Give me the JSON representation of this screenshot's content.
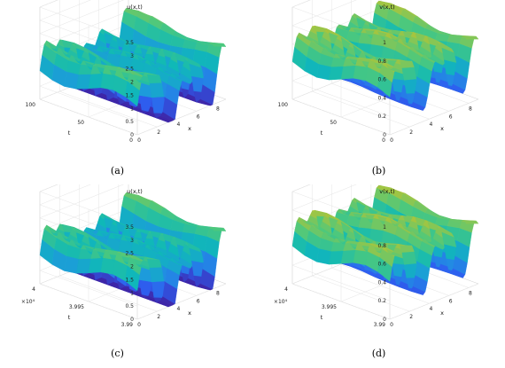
{
  "chart_data": [
    {
      "type": "surface3d",
      "title": "u(x,t)",
      "xlabel": "x",
      "ylabel": "t",
      "xlim": [
        0,
        9
      ],
      "ylim": [
        0,
        100
      ],
      "zlim": [
        0,
        3.5
      ],
      "x_ticks": [
        "0",
        "2",
        "4",
        "6",
        "8"
      ],
      "y_ticks": [
        "0",
        "50",
        "100"
      ],
      "y_exponent": "",
      "z_ticks": [
        "0",
        "0.5",
        "1",
        "1.5",
        "2",
        "2.5",
        "3",
        "3.5"
      ],
      "caption": "(a)"
    },
    {
      "type": "surface3d",
      "title": "v(x,t)",
      "xlabel": "x",
      "ylabel": "t",
      "xlim": [
        0,
        9
      ],
      "ylim": [
        0,
        100
      ],
      "zlim": [
        0,
        1
      ],
      "x_ticks": [
        "0",
        "2",
        "4",
        "6",
        "8"
      ],
      "y_ticks": [
        "0",
        "50",
        "100"
      ],
      "y_exponent": "",
      "z_ticks": [
        "0",
        "0.2",
        "0.4",
        "0.6",
        "0.8",
        "1"
      ],
      "caption": "(b)"
    },
    {
      "type": "surface3d",
      "title": "u(x,t)",
      "xlabel": "x",
      "ylabel": "t",
      "xlim": [
        0,
        9
      ],
      "ylim": [
        3.99,
        4
      ],
      "zlim": [
        0,
        3.5
      ],
      "x_ticks": [
        "0",
        "2",
        "4",
        "6",
        "8"
      ],
      "y_ticks": [
        "3.99",
        "3.995",
        "4"
      ],
      "y_exponent": "×10⁴",
      "z_ticks": [
        "0",
        "0.5",
        "1",
        "1.5",
        "2",
        "2.5",
        "3",
        "3.5"
      ],
      "caption": "(c)"
    },
    {
      "type": "surface3d",
      "title": "v(x,t)",
      "xlabel": "x",
      "ylabel": "t",
      "xlim": [
        0,
        9
      ],
      "ylim": [
        3.99,
        4
      ],
      "zlim": [
        0,
        1
      ],
      "x_ticks": [
        "0",
        "2",
        "4",
        "6",
        "8"
      ],
      "y_ticks": [
        "3.99",
        "3.995",
        "4"
      ],
      "y_exponent": "×10⁴",
      "z_ticks": [
        "0",
        "0.2",
        "0.4",
        "0.6",
        "0.8",
        "1"
      ],
      "caption": "(d)"
    }
  ],
  "colormap": [
    "#3e26a8",
    "#2e5ff0",
    "#1f96e0",
    "#0fb9b7",
    "#4bc87e",
    "#b4c435",
    "#f5d61f",
    "#fafa14"
  ]
}
